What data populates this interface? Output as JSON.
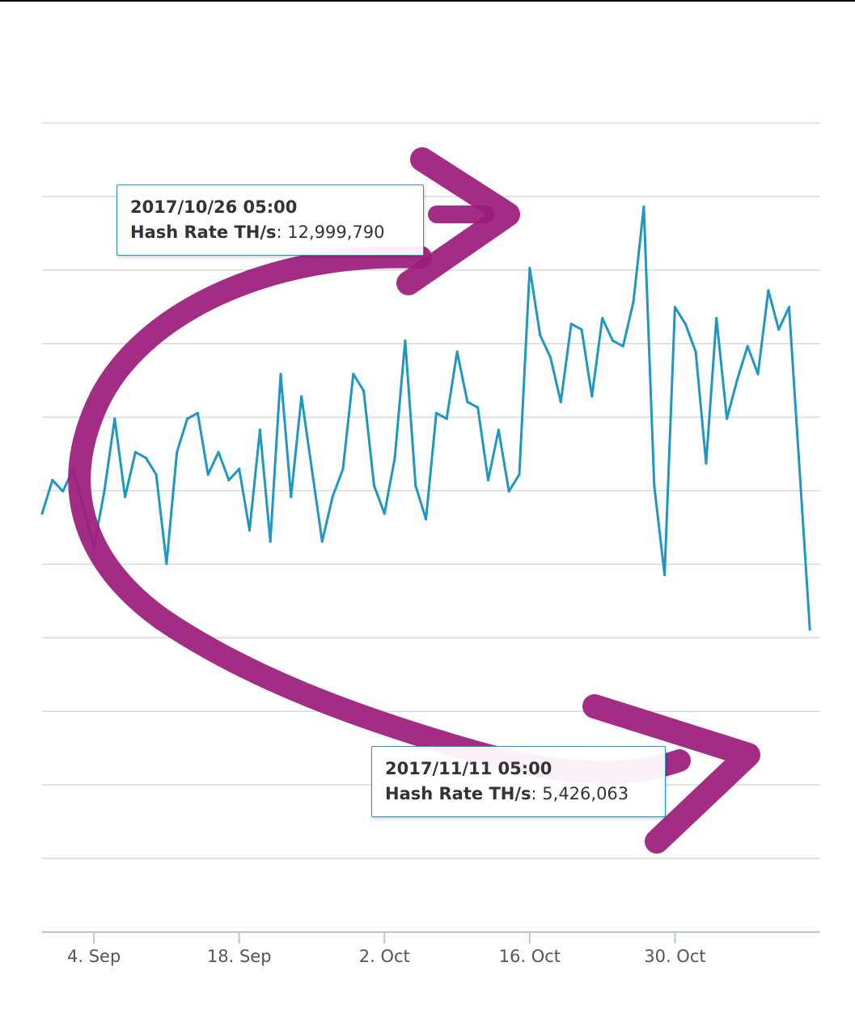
{
  "colors": {
    "line": "#1f97c4",
    "grid": "#d9d9d9",
    "axis": "#b8c7d0",
    "tick_label": "#555555",
    "annotation": "#9c1c7c"
  },
  "tooltips": [
    {
      "date": "2017/10/26 05:00",
      "label": "Hash Rate TH/s",
      "value": "12,999,790"
    },
    {
      "date": "2017/11/11 05:00",
      "label": "Hash Rate TH/s",
      "value": "5,426,063"
    }
  ],
  "chart_data": {
    "type": "line",
    "title": "",
    "xlabel": "",
    "ylabel": "",
    "x_tick_labels": [
      "4. Sep",
      "18. Sep",
      "2. Oct",
      "16. Oct",
      "30. Oct"
    ],
    "y_tick_labels": [],
    "grid": "horizontal",
    "legend": "none",
    "xlim": [
      "2017-08-30",
      "2017-11-13"
    ],
    "ylim": [
      0,
      14500000
    ],
    "series": [
      {
        "name": "Hash Rate TH/s",
        "points": [
          [
            "2017-08-30",
            7500000
          ],
          [
            "2017-08-31",
            8100000
          ],
          [
            "2017-09-01",
            7900000
          ],
          [
            "2017-09-02",
            8300000
          ],
          [
            "2017-09-03",
            7600000
          ],
          [
            "2017-09-04",
            6900000
          ],
          [
            "2017-09-05",
            7900000
          ],
          [
            "2017-09-06",
            9200000
          ],
          [
            "2017-09-07",
            7800000
          ],
          [
            "2017-09-08",
            8600000
          ],
          [
            "2017-09-09",
            8500000
          ],
          [
            "2017-09-10",
            8200000
          ],
          [
            "2017-09-11",
            6600000
          ],
          [
            "2017-09-12",
            8600000
          ],
          [
            "2017-09-13",
            9200000
          ],
          [
            "2017-09-14",
            9300000
          ],
          [
            "2017-09-15",
            8200000
          ],
          [
            "2017-09-16",
            8600000
          ],
          [
            "2017-09-17",
            8100000
          ],
          [
            "2017-09-18",
            8300000
          ],
          [
            "2017-09-19",
            7200000
          ],
          [
            "2017-09-20",
            9000000
          ],
          [
            "2017-09-21",
            7000000
          ],
          [
            "2017-09-22",
            10000000
          ],
          [
            "2017-09-23",
            7800000
          ],
          [
            "2017-09-24",
            9600000
          ],
          [
            "2017-09-25",
            8300000
          ],
          [
            "2017-09-26",
            7000000
          ],
          [
            "2017-09-27",
            7800000
          ],
          [
            "2017-09-28",
            8300000
          ],
          [
            "2017-09-29",
            10000000
          ],
          [
            "2017-09-30",
            9700000
          ],
          [
            "2017-10-01",
            8000000
          ],
          [
            "2017-10-02",
            7500000
          ],
          [
            "2017-10-03",
            8500000
          ],
          [
            "2017-10-04",
            10600000
          ],
          [
            "2017-10-05",
            8000000
          ],
          [
            "2017-10-06",
            7400000
          ],
          [
            "2017-10-07",
            9300000
          ],
          [
            "2017-10-08",
            9200000
          ],
          [
            "2017-10-09",
            10400000
          ],
          [
            "2017-10-10",
            9500000
          ],
          [
            "2017-10-11",
            9400000
          ],
          [
            "2017-10-12",
            8100000
          ],
          [
            "2017-10-13",
            9000000
          ],
          [
            "2017-10-14",
            7900000
          ],
          [
            "2017-10-15",
            8200000
          ],
          [
            "2017-10-16",
            11900000
          ],
          [
            "2017-10-17",
            10700000
          ],
          [
            "2017-10-18",
            10300000
          ],
          [
            "2017-10-19",
            9500000
          ],
          [
            "2017-10-20",
            10900000
          ],
          [
            "2017-10-21",
            10800000
          ],
          [
            "2017-10-22",
            9600000
          ],
          [
            "2017-10-23",
            11000000
          ],
          [
            "2017-10-24",
            10600000
          ],
          [
            "2017-10-25",
            10500000
          ],
          [
            "2017-10-26",
            11300000
          ],
          [
            "2017-10-27",
            12999790
          ],
          [
            "2017-10-28",
            8000000
          ],
          [
            "2017-10-29",
            6400000
          ],
          [
            "2017-10-30",
            11200000
          ],
          [
            "2017-10-31",
            10900000
          ],
          [
            "2017-11-01",
            10400000
          ],
          [
            "2017-11-02",
            8400000
          ],
          [
            "2017-11-03",
            11000000
          ],
          [
            "2017-11-04",
            9200000
          ],
          [
            "2017-11-05",
            9900000
          ],
          [
            "2017-11-06",
            10500000
          ],
          [
            "2017-11-07",
            10000000
          ],
          [
            "2017-11-08",
            11500000
          ],
          [
            "2017-11-09",
            10800000
          ],
          [
            "2017-11-10",
            11200000
          ],
          [
            "2017-11-12",
            5426063
          ]
        ]
      }
    ]
  }
}
